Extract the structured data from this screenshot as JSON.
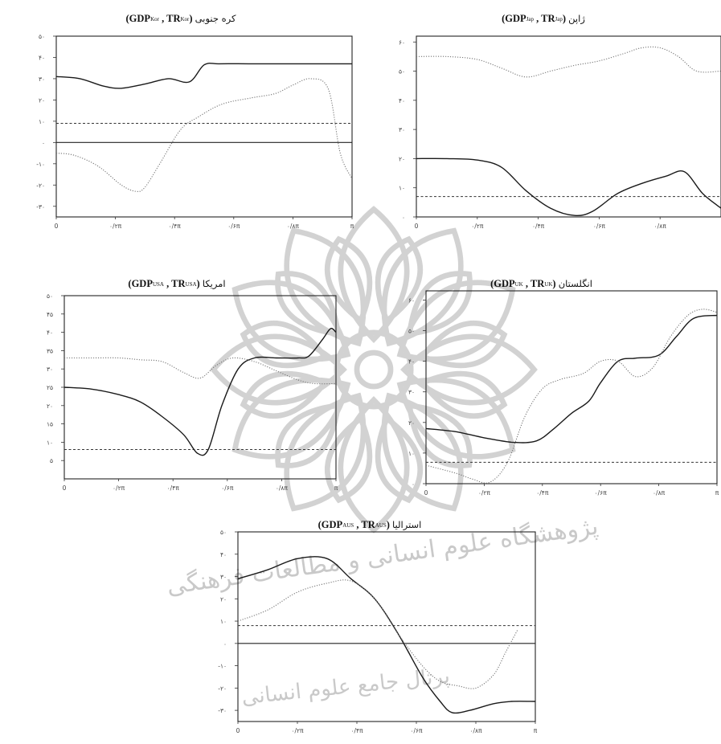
{
  "chart_data": [
    {
      "id": "kor",
      "type": "line",
      "title": {
        "name": "کره جنوبی",
        "gdp": "GDP",
        "gdp_sub": "Kor",
        "tr": "TR",
        "tr_sub": "Kor"
      },
      "xlim": [
        0,
        1
      ],
      "ylim": [
        -35,
        50
      ],
      "xticks": [
        {
          "v": 0,
          "label": "0"
        },
        {
          "v": 0.2,
          "label": "۰/۲π"
        },
        {
          "v": 0.4,
          "label": "۰/۴π"
        },
        {
          "v": 0.6,
          "label": "۰/۶π"
        },
        {
          "v": 0.8,
          "label": "۰/۸π"
        },
        {
          "v": 1,
          "label": "π"
        }
      ],
      "yticks": [
        {
          "v": 50,
          "label": "۵۰"
        },
        {
          "v": 40,
          "label": "۴۰"
        },
        {
          "v": 30,
          "label": "۳۰"
        },
        {
          "v": 20,
          "label": "۲۰"
        },
        {
          "v": 10,
          "label": "۱۰"
        },
        {
          "v": 0,
          "label": "۰"
        },
        {
          "v": -10,
          "label": "-۱۰"
        },
        {
          "v": -20,
          "label": "-۲۰"
        },
        {
          "v": -30,
          "label": "-۳۰"
        }
      ],
      "zero_line": 0,
      "significance": 9,
      "series": [
        {
          "style": "solid",
          "x": [
            0,
            0.08,
            0.16,
            0.22,
            0.3,
            0.38,
            0.45,
            0.5,
            0.55,
            0.65,
            0.75,
            0.85,
            0.95,
            1
          ],
          "y": [
            31,
            30,
            26.5,
            25.5,
            27.5,
            30,
            28.5,
            36.5,
            37,
            37,
            37,
            37,
            37,
            37
          ]
        },
        {
          "style": "dotted",
          "x": [
            0,
            0.06,
            0.14,
            0.22,
            0.27,
            0.3,
            0.35,
            0.42,
            0.48,
            0.56,
            0.66,
            0.74,
            0.8,
            0.86,
            0.92,
            0.96,
            1
          ],
          "y": [
            -5,
            -6,
            -11,
            -20,
            -23,
            -21,
            -10,
            6,
            12,
            18,
            21,
            23,
            27,
            30,
            25,
            -5,
            -17
          ]
        }
      ]
    },
    {
      "id": "jap",
      "type": "line",
      "title": {
        "name": "ژاپن",
        "gdp": "GDP",
        "gdp_sub": "Jap",
        "tr": "TR",
        "tr_sub": "Jap"
      },
      "xlim": [
        0,
        1
      ],
      "ylim": [
        0,
        62
      ],
      "xticks": [
        {
          "v": 0,
          "label": "0"
        },
        {
          "v": 0.2,
          "label": "۰/۲π"
        },
        {
          "v": 0.4,
          "label": "۰/۴π"
        },
        {
          "v": 0.6,
          "label": "۰/۶π"
        },
        {
          "v": 0.8,
          "label": "۰/۸π"
        }
      ],
      "yticks": [
        {
          "v": 60,
          "label": "۶۰"
        },
        {
          "v": 50,
          "label": "۵۰"
        },
        {
          "v": 40,
          "label": "۴۰"
        },
        {
          "v": 30,
          "label": "۳۰"
        },
        {
          "v": 20,
          "label": "۲۰"
        },
        {
          "v": 10,
          "label": "۱۰"
        },
        {
          "v": 0,
          "label": "۰"
        }
      ],
      "significance": 7,
      "series": [
        {
          "style": "solid",
          "x": [
            0,
            0.1,
            0.2,
            0.28,
            0.36,
            0.44,
            0.52,
            0.58,
            0.66,
            0.74,
            0.82,
            0.88,
            0.94,
            1
          ],
          "y": [
            20,
            20,
            19.5,
            17,
            9,
            3,
            0.5,
            2,
            8,
            11.5,
            14,
            15.5,
            8,
            3
          ]
        },
        {
          "style": "dotted",
          "x": [
            0,
            0.1,
            0.2,
            0.28,
            0.36,
            0.44,
            0.52,
            0.6,
            0.68,
            0.74,
            0.8,
            0.86,
            0.92,
            1
          ],
          "y": [
            55,
            55,
            54,
            51,
            48,
            50,
            52,
            53.5,
            56,
            58,
            58,
            55,
            50,
            50
          ]
        }
      ]
    },
    {
      "id": "usa",
      "type": "line",
      "title": {
        "name": "امریکا",
        "gdp": "GDP",
        "gdp_sub": "USA",
        "tr": "TR",
        "tr_sub": "USA"
      },
      "xlim": [
        0,
        1
      ],
      "ylim": [
        0,
        50
      ],
      "xticks": [
        {
          "v": 0,
          "label": "0"
        },
        {
          "v": 0.2,
          "label": "۰/۲π"
        },
        {
          "v": 0.4,
          "label": "۰/۴π"
        },
        {
          "v": 0.6,
          "label": "۰/۶π"
        },
        {
          "v": 0.8,
          "label": "۰/۸π"
        },
        {
          "v": 1,
          "label": "π"
        }
      ],
      "yticks": [
        {
          "v": 50,
          "label": "۵۰"
        },
        {
          "v": 45,
          "label": "۴۵"
        },
        {
          "v": 40,
          "label": "۴۰"
        },
        {
          "v": 35,
          "label": "۳۵"
        },
        {
          "v": 30,
          "label": "۳۰"
        },
        {
          "v": 25,
          "label": "۲۵"
        },
        {
          "v": 20,
          "label": "۲۰"
        },
        {
          "v": 15,
          "label": "۱۵"
        },
        {
          "v": 10,
          "label": "۱۰"
        },
        {
          "v": 5,
          "label": "۵"
        }
      ],
      "significance": 8,
      "series": [
        {
          "style": "solid",
          "x": [
            0,
            0.1,
            0.2,
            0.28,
            0.36,
            0.44,
            0.49,
            0.53,
            0.58,
            0.64,
            0.7,
            0.78,
            0.86,
            0.9,
            0.95,
            0.98,
            1
          ],
          "y": [
            25,
            24.5,
            23,
            21,
            17,
            12,
            7,
            8,
            20,
            30,
            33,
            33,
            33,
            33.5,
            38,
            41,
            40
          ]
        },
        {
          "style": "dotted",
          "x": [
            0,
            0.1,
            0.2,
            0.28,
            0.36,
            0.44,
            0.5,
            0.56,
            0.62,
            0.7,
            0.78,
            0.86,
            0.92,
            1
          ],
          "y": [
            33,
            33,
            33,
            32.5,
            32,
            29,
            27.5,
            31,
            33,
            32,
            29.5,
            27,
            26,
            26
          ]
        }
      ]
    },
    {
      "id": "uk",
      "type": "line",
      "title": {
        "name": "انگلستان",
        "gdp": "GDP",
        "gdp_sub": "UK",
        "tr": "TR",
        "tr_sub": "UK"
      },
      "xlim": [
        0,
        1
      ],
      "ylim": [
        0,
        63
      ],
      "xticks": [
        {
          "v": 0,
          "label": "0"
        },
        {
          "v": 0.2,
          "label": "۰/۲π"
        },
        {
          "v": 0.4,
          "label": "۰/۴π"
        },
        {
          "v": 0.6,
          "label": "۰/۶π"
        },
        {
          "v": 0.8,
          "label": "۰/۸π"
        },
        {
          "v": 1,
          "label": "π"
        }
      ],
      "yticks": [
        {
          "v": 60,
          "label": "۶۰"
        },
        {
          "v": 50,
          "label": "۵۰"
        },
        {
          "v": 40,
          "label": "۴۰"
        },
        {
          "v": 30,
          "label": "۳۰"
        },
        {
          "v": 20,
          "label": "۲۰"
        },
        {
          "v": 10,
          "label": "۱۰"
        },
        {
          "v": 0,
          "label": "۰"
        }
      ],
      "significance": 7,
      "series": [
        {
          "style": "solid",
          "x": [
            0,
            0.1,
            0.2,
            0.3,
            0.38,
            0.44,
            0.5,
            0.56,
            0.6,
            0.66,
            0.72,
            0.8,
            0.86,
            0.92,
            1
          ],
          "y": [
            18,
            17,
            15,
            13.5,
            14,
            18,
            23,
            27,
            33,
            40,
            41,
            42,
            48,
            54,
            55
          ]
        },
        {
          "style": "dotted",
          "x": [
            0,
            0.1,
            0.16,
            0.22,
            0.28,
            0.34,
            0.4,
            0.46,
            0.54,
            0.6,
            0.66,
            0.72,
            0.78,
            0.84,
            0.9,
            0.95,
            1
          ],
          "y": [
            6,
            3.5,
            1.5,
            0.5,
            7,
            22,
            31,
            34,
            36,
            40,
            40,
            35,
            38,
            48,
            55,
            57,
            56
          ]
        }
      ]
    },
    {
      "id": "aus",
      "type": "line",
      "title": {
        "name": "استرالیا",
        "gdp": "GDP",
        "gdp_sub": "AUS",
        "tr": "TR",
        "tr_sub": "AUS"
      },
      "xlim": [
        0,
        1
      ],
      "ylim": [
        -35,
        50
      ],
      "xticks": [
        {
          "v": 0,
          "label": "0"
        },
        {
          "v": 0.2,
          "label": "۰/۲π"
        },
        {
          "v": 0.4,
          "label": "۰/۴π"
        },
        {
          "v": 0.6,
          "label": "۰/۶π"
        },
        {
          "v": 0.8,
          "label": "۰/۸π"
        },
        {
          "v": 1,
          "label": "π"
        }
      ],
      "yticks": [
        {
          "v": 50,
          "label": "۵۰"
        },
        {
          "v": 40,
          "label": "۴۰"
        },
        {
          "v": 30,
          "label": "۳۰"
        },
        {
          "v": 20,
          "label": "۲۰"
        },
        {
          "v": 10,
          "label": "۱۰"
        },
        {
          "v": 0,
          "label": "۰"
        },
        {
          "v": -10,
          "label": "-۱۰"
        },
        {
          "v": -20,
          "label": "-۲۰"
        },
        {
          "v": -30,
          "label": "-۳۰"
        }
      ],
      "zero_line": 0,
      "significance": 8,
      "series": [
        {
          "style": "solid",
          "x": [
            0,
            0.1,
            0.2,
            0.3,
            0.38,
            0.46,
            0.54,
            0.62,
            0.68,
            0.72,
            0.78,
            0.86,
            0.92,
            1
          ],
          "y": [
            29,
            33,
            38,
            38,
            29,
            20,
            4,
            -15,
            -26,
            -31,
            -30,
            -27,
            -26,
            -26
          ]
        },
        {
          "style": "dotted",
          "x": [
            0,
            0.1,
            0.2,
            0.3,
            0.38,
            0.46,
            0.54,
            0.62,
            0.68,
            0.74,
            0.8,
            0.86,
            0.9,
            0.94
          ],
          "y": [
            10,
            15,
            23,
            27,
            28,
            20,
            4,
            -10,
            -17,
            -19,
            -20,
            -14,
            -4,
            6
          ]
        }
      ]
    }
  ],
  "watermark": {
    "line1": "پژوهشگاه علوم انسانی و مطالعات فرهنگی",
    "line2": "پرتال جامع علوم انسانی"
  }
}
